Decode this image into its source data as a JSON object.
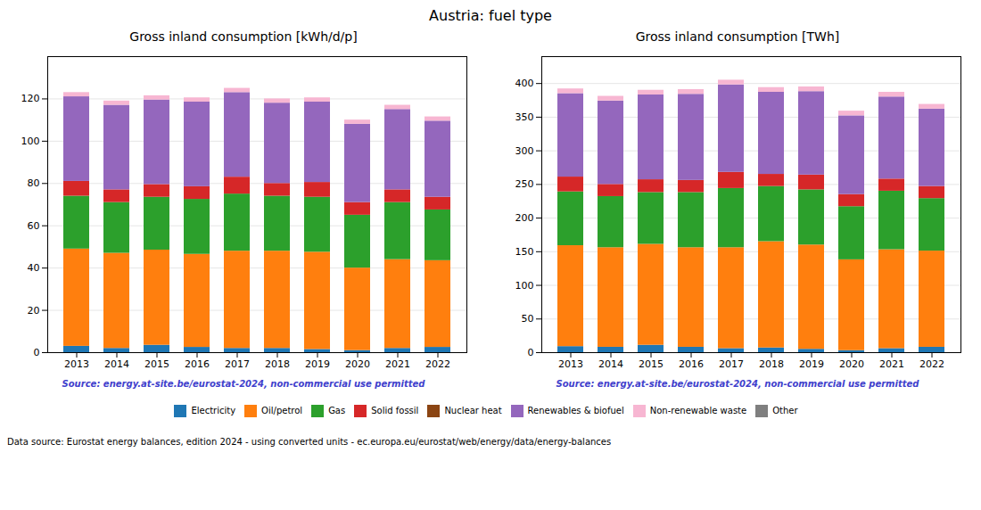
{
  "title": "Austria: fuel type",
  "annotations": [
    "Data source: Eurostat energy balances, edition 2024 - using converted units - ec.europa.eu/eurostat/web/energy/data/energy-balances"
  ],
  "chart_data": [
    {
      "type": "bar",
      "stacked": true,
      "grid": true,
      "legend": "bottom",
      "title": "Gross inland consumption [kWh/d/p]",
      "annotations": [
        "Source: energy.at-site.be/eurostat-2024, non-commercial use permitted"
      ],
      "categories": [
        "2013",
        "2014",
        "2015",
        "2016",
        "2017",
        "2018",
        "2019",
        "2020",
        "2021",
        "2022"
      ],
      "series": [
        {
          "name": "Electricity",
          "color": "#1f77b4",
          "values": [
            3.0,
            2.0,
            3.5,
            2.5,
            2.0,
            2.0,
            1.5,
            1.0,
            2.0,
            2.5
          ]
        },
        {
          "name": "Oil/petrol",
          "color": "#ff7f0e",
          "values": [
            46,
            45,
            45,
            44,
            46,
            46,
            46,
            39,
            42,
            41
          ]
        },
        {
          "name": "Gas",
          "color": "#2ca02c",
          "values": [
            25,
            24,
            25,
            26,
            27,
            26,
            26,
            25,
            27,
            24
          ]
        },
        {
          "name": "Solid fossil",
          "color": "#d62728",
          "values": [
            7,
            6,
            6,
            6,
            8,
            6,
            7,
            6,
            6,
            6
          ]
        },
        {
          "name": "Nuclear heat",
          "color": "#8b4513",
          "values": [
            0,
            0,
            0,
            0,
            0,
            0,
            0,
            0,
            0,
            0
          ]
        },
        {
          "name": "Renewables & biofuel",
          "color": "#9467bd",
          "values": [
            40,
            40,
            40,
            40,
            40,
            38,
            38,
            37,
            38,
            36
          ]
        },
        {
          "name": "Non-renewable waste",
          "color": "#f7b6d2",
          "values": [
            2,
            2,
            2,
            2,
            2,
            2,
            2,
            2,
            2,
            2
          ]
        },
        {
          "name": "Other",
          "color": "#7f7f7f",
          "values": [
            0,
            0,
            0,
            0,
            0,
            0,
            0,
            0,
            0,
            0
          ]
        }
      ],
      "ylim": [
        0,
        140
      ],
      "yticks": [
        0,
        20,
        40,
        60,
        80,
        100,
        120
      ]
    },
    {
      "type": "bar",
      "stacked": true,
      "grid": true,
      "legend": "bottom",
      "title": "Gross inland consumption [TWh]",
      "annotations": [
        "Source: energy.at-site.be/eurostat-2024, non-commercial use permitted"
      ],
      "categories": [
        "2013",
        "2014",
        "2015",
        "2016",
        "2017",
        "2018",
        "2019",
        "2020",
        "2021",
        "2022"
      ],
      "series": [
        {
          "name": "Electricity",
          "color": "#1f77b4",
          "values": [
            9,
            8,
            11,
            8,
            6,
            7,
            5,
            3,
            6,
            8
          ]
        },
        {
          "name": "Oil/petrol",
          "color": "#ff7f0e",
          "values": [
            150,
            148,
            150,
            148,
            150,
            158,
            155,
            135,
            147,
            143
          ]
        },
        {
          "name": "Gas",
          "color": "#2ca02c",
          "values": [
            80,
            76,
            77,
            82,
            88,
            82,
            82,
            79,
            87,
            78
          ]
        },
        {
          "name": "Solid fossil",
          "color": "#d62728",
          "values": [
            22,
            18,
            19,
            18,
            24,
            18,
            22,
            18,
            18,
            18
          ]
        },
        {
          "name": "Nuclear heat",
          "color": "#8b4513",
          "values": [
            0,
            0,
            0,
            0,
            0,
            0,
            0,
            0,
            0,
            0
          ]
        },
        {
          "name": "Renewables & biofuel",
          "color": "#9467bd",
          "values": [
            124,
            124,
            126,
            128,
            130,
            122,
            124,
            117,
            122,
            115
          ]
        },
        {
          "name": "Non-renewable waste",
          "color": "#f7b6d2",
          "values": [
            7,
            7,
            7,
            7,
            7,
            7,
            7,
            7,
            7,
            7
          ]
        },
        {
          "name": "Other",
          "color": "#7f7f7f",
          "values": [
            0,
            0,
            0,
            0,
            0,
            0,
            0,
            0,
            0,
            0
          ]
        }
      ],
      "ylim": [
        0,
        440
      ],
      "yticks": [
        0,
        50,
        100,
        150,
        200,
        250,
        300,
        350,
        400
      ]
    }
  ]
}
